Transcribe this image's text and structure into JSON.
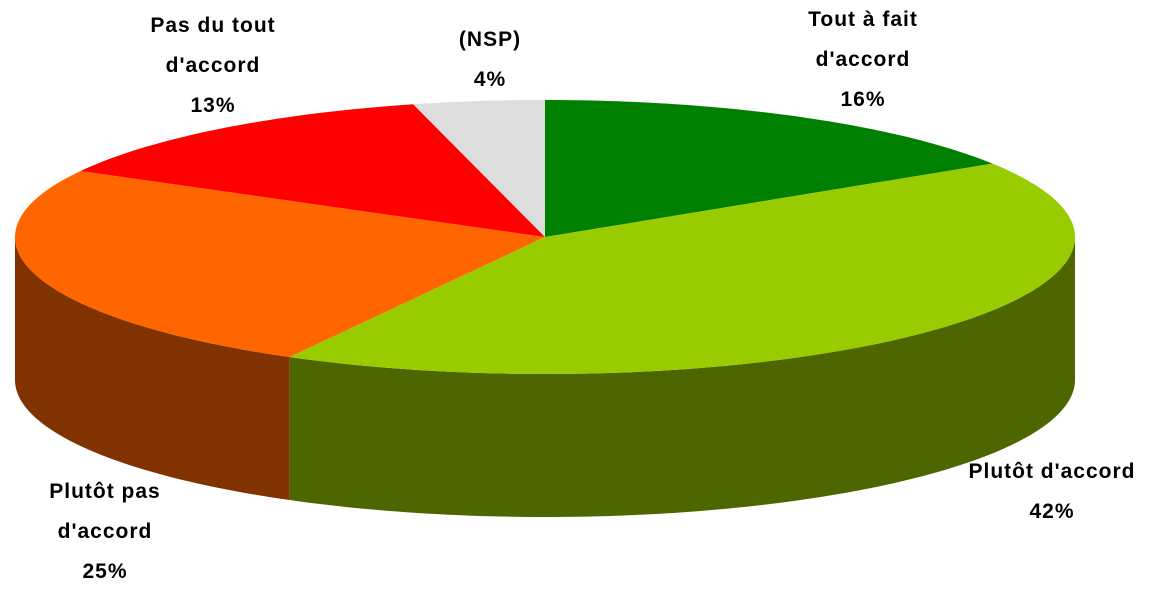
{
  "chart_data": {
    "type": "pie3d",
    "categories": [
      "Tout à fait d'accord",
      "Plutôt d'accord",
      "Plutôt pas d'accord",
      "Pas du tout d'accord",
      "(NSP)"
    ],
    "values": [
      16,
      42,
      25,
      13,
      4
    ],
    "value_labels": [
      "16%",
      "42%",
      "25%",
      "13%",
      "4%"
    ],
    "colors": [
      "#008000",
      "#99cc00",
      "#ff6600",
      "#ff0000",
      "#dddddd"
    ]
  }
}
